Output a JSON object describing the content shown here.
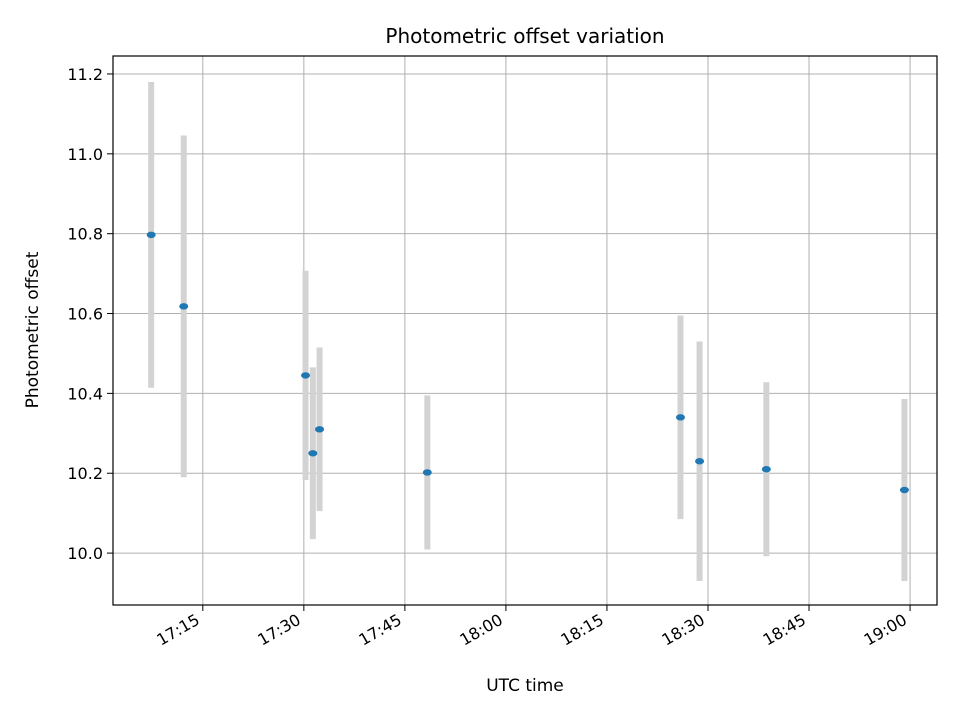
{
  "chart_data": {
    "type": "scatter",
    "title": "Photometric offset variation",
    "xlabel": "UTC time",
    "ylabel": "Photometric offset",
    "x_ticks": [
      "17:15",
      "17:30",
      "17:45",
      "18:00",
      "18:15",
      "18:30",
      "18:45",
      "19:00"
    ],
    "y_ticks": [
      "10.0",
      "10.2",
      "10.4",
      "10.6",
      "10.8",
      "11.0",
      "11.2"
    ],
    "xlim": [
      "17:01:40",
      "19:04"
    ],
    "ylim": [
      9.87,
      11.245
    ],
    "grid": true,
    "marker_color": "#1f77b4",
    "errorbar_color": "#d3d3d3",
    "series": [
      {
        "points": [
          {
            "x": "17:07:20",
            "y": 10.797,
            "yerr": 0.383
          },
          {
            "x": "17:12:10",
            "y": 10.618,
            "yerr": 0.428
          },
          {
            "x": "17:30:15",
            "y": 10.445,
            "yerr": 0.262
          },
          {
            "x": "17:31:20",
            "y": 10.25,
            "yerr": 0.215
          },
          {
            "x": "17:32:20",
            "y": 10.31,
            "yerr": 0.205
          },
          {
            "x": "17:48:20",
            "y": 10.202,
            "yerr": 0.193
          },
          {
            "x": "18:25:55",
            "y": 10.34,
            "yerr": 0.255
          },
          {
            "x": "18:28:45",
            "y": 10.23,
            "yerr": 0.3
          },
          {
            "x": "18:38:40",
            "y": 10.21,
            "yerr": 0.218
          },
          {
            "x": "18:59:10",
            "y": 10.158,
            "yerr": 0.228
          }
        ]
      }
    ]
  }
}
